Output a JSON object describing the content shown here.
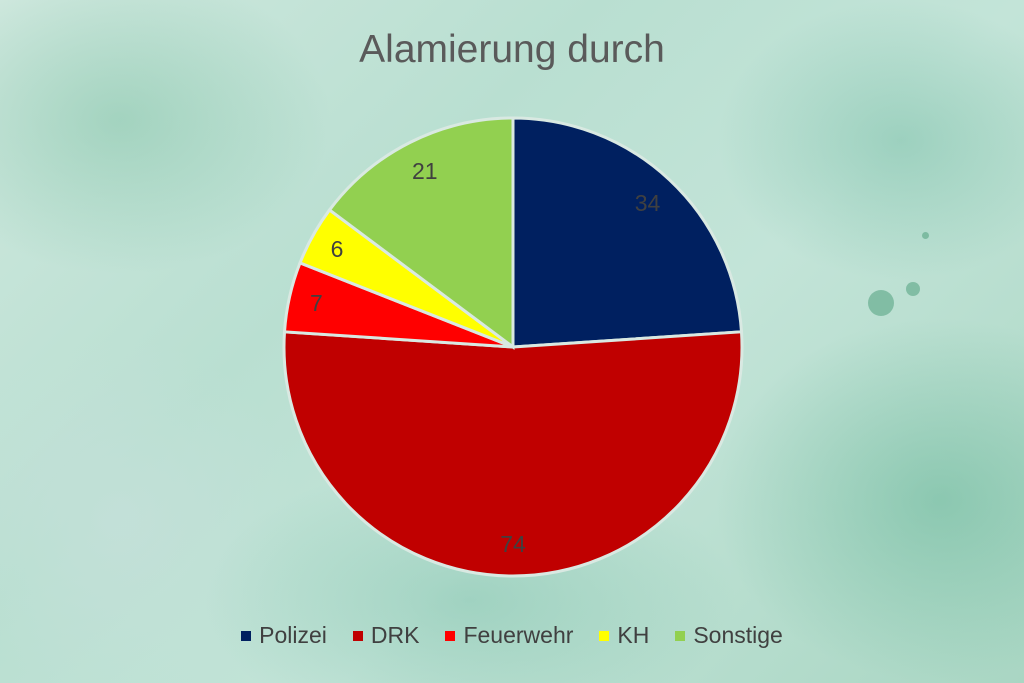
{
  "chart_data": {
    "type": "pie",
    "title": "Alamierung durch",
    "categories": [
      "Polizei",
      "DRK",
      "Feuerwehr",
      "KH",
      "Sonstige"
    ],
    "values": [
      34,
      74,
      7,
      6,
      21
    ],
    "colors": [
      "#002060",
      "#C00000",
      "#FF0000",
      "#FFFF00",
      "#92D050"
    ],
    "label_colors": [
      "#404040",
      "#404040",
      "#404040",
      "#404040",
      "#404040"
    ],
    "start_angle_deg": 0,
    "direction": "clockwise",
    "legend_position": "bottom"
  }
}
